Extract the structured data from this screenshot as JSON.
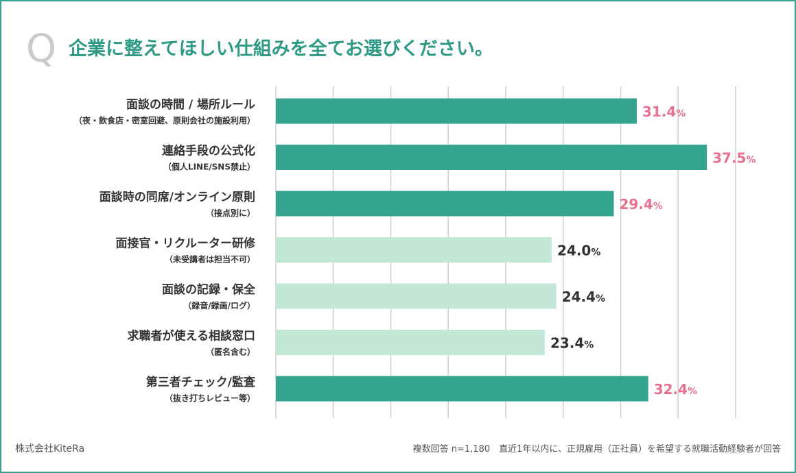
{
  "question_mark": "Q",
  "question": "企業に整えてほしい仕組みを全てお選びください。",
  "footer": {
    "company": "株式会社KiteRa",
    "note": "複数回答 n=1,180　直近1年以内に、正規雇用（正社員）を希望する就職活動経験者が回答"
  },
  "colors": {
    "frame": "#3aa08f",
    "question": "#2e9a85",
    "bar_highlight": "#34a490",
    "bar_normal": "#c3e8d8",
    "value_highlight": "#e8718f",
    "value_normal": "#333333",
    "grid": "#cfcfcf"
  },
  "chart_data": {
    "type": "bar",
    "orientation": "horizontal",
    "unit": "%",
    "xlim": [
      0,
      40
    ],
    "grid": true,
    "categories": [
      {
        "label": "面談の時間 / 場所ルール",
        "sublabel": "（夜・飲食店・密室回避、原則会社の施設利用）",
        "value": 31.4,
        "value_label": "31.4",
        "highlight": true
      },
      {
        "label": "連絡手段の公式化",
        "sublabel": "（個人LINE/SNS禁止）",
        "value": 37.5,
        "value_label": "37.5",
        "highlight": true
      },
      {
        "label": "面談時の同席/オンライン原則",
        "sublabel": "（接点別に）",
        "value": 29.4,
        "value_label": "29.4",
        "highlight": true
      },
      {
        "label": "面接官・リクルーター研修",
        "sublabel": "（未受講者は担当不可）",
        "value": 24.0,
        "value_label": "24.0",
        "highlight": false
      },
      {
        "label": "面談の記録・保全",
        "sublabel": "（録音/録画/ログ）",
        "value": 24.4,
        "value_label": "24.4",
        "highlight": false
      },
      {
        "label": "求職者が使える相談窓口",
        "sublabel": "（匿名含む）",
        "value": 23.4,
        "value_label": "23.4",
        "highlight": false
      },
      {
        "label": "第三者チェック/監査",
        "sublabel": "（抜き打ちレビュー等）",
        "value": 32.4,
        "value_label": "32.4",
        "highlight": true
      }
    ]
  }
}
